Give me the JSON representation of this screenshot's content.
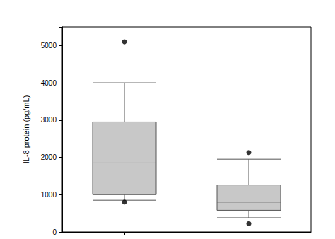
{
  "chart_data": {
    "type": "boxplot",
    "y_label": "IL-8 protein (pg/mL)",
    "categories": [
      null,
      null
    ],
    "values": [
      [
        850,
        1000,
        1850,
        2950,
        4000
      ],
      [
        380,
        580,
        800,
        1260,
        1950
      ]
    ],
    "outliers": [
      [
        5100,
        800
      ],
      [
        2130,
        220
      ]
    ],
    "color": "#c8c8c8",
    "ylim": [
      0,
      5500
    ],
    "yticks": [
      0,
      1000,
      2000,
      3000,
      4000,
      5000
    ],
    "grid": false
  }
}
